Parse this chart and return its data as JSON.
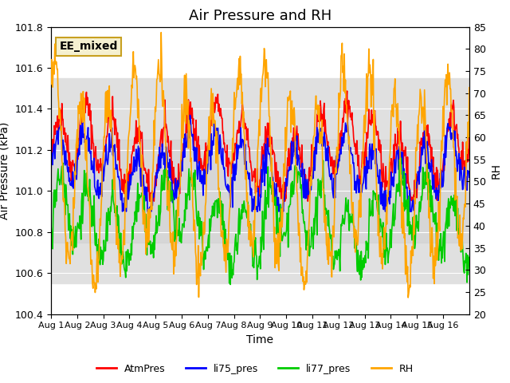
{
  "title": "Air Pressure and RH",
  "xlabel": "Time",
  "ylabel_left": "Air Pressure (kPa)",
  "ylabel_right": "RH",
  "annotation": "EE_mixed",
  "ylim_left": [
    100.4,
    101.8
  ],
  "ylim_right": [
    20,
    85
  ],
  "yticks_left": [
    100.4,
    100.6,
    100.8,
    101.0,
    101.2,
    101.4,
    101.6,
    101.8
  ],
  "yticks_right": [
    20,
    25,
    30,
    35,
    40,
    45,
    50,
    55,
    60,
    65,
    70,
    75,
    80,
    85
  ],
  "xtick_labels": [
    "Aug 1",
    "Aug 2",
    "Aug 3",
    "Aug 4",
    "Aug 5",
    "Aug 6",
    "Aug 7",
    "Aug 8",
    "Aug 9",
    "Aug 10",
    "Aug 11",
    "Aug 12",
    "Aug 13",
    "Aug 14",
    "Aug 15",
    "Aug 16"
  ],
  "n_days": 16,
  "colors": {
    "AtmPres": "#ff0000",
    "li75_pres": "#0000ff",
    "li77_pres": "#00cc00",
    "RH": "#ffa500"
  },
  "legend_labels": [
    "AtmPres",
    "li75_pres",
    "li77_pres",
    "RH"
  ],
  "bg_band_color": "#e0e0e0",
  "bg_band_ylim": [
    100.55,
    101.55
  ],
  "bg_band2_ylim": [
    100.75,
    101.25
  ],
  "title_fontsize": 13,
  "axis_label_fontsize": 10,
  "tick_fontsize": 9,
  "annotation_fontsize": 10
}
